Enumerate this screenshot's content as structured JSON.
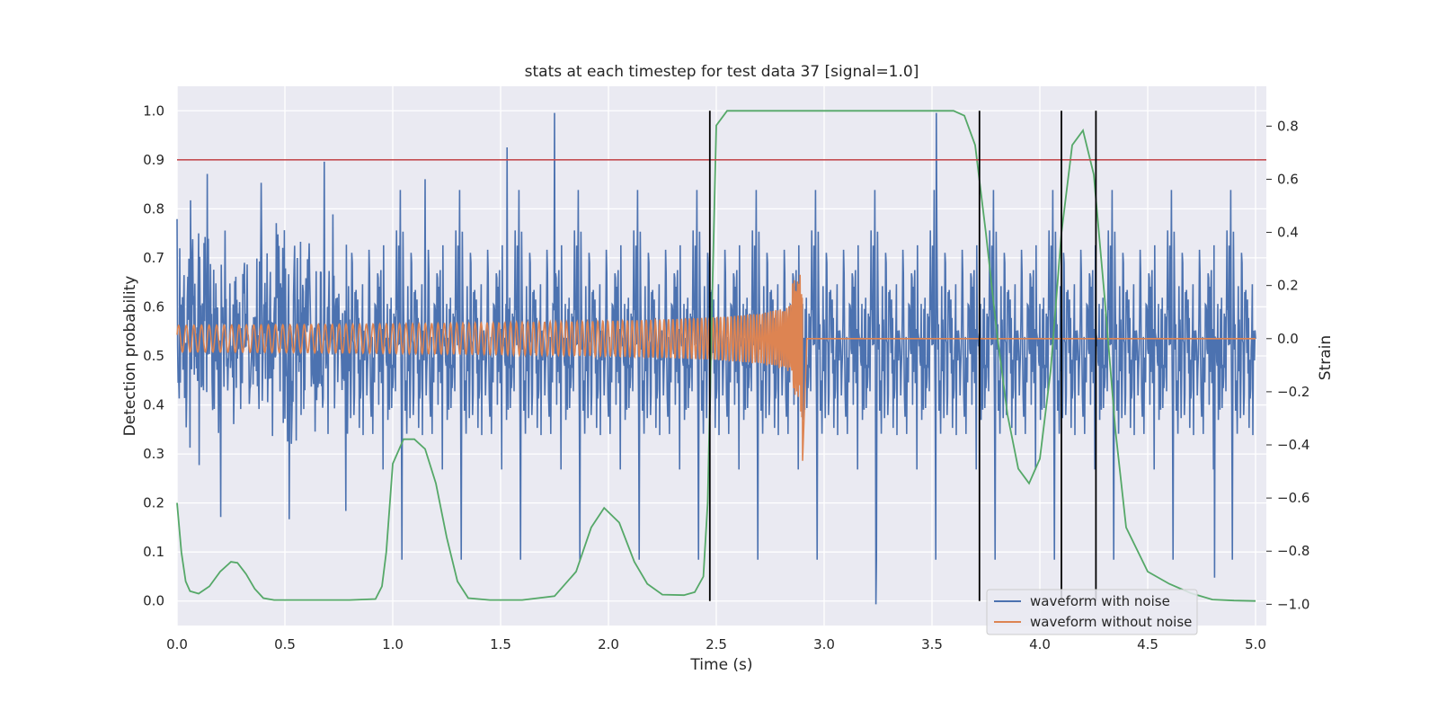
{
  "chart_data": {
    "type": "line",
    "title": "stats at each timestep for test data 37 [signal=1.0]",
    "xlabel": "Time (s)",
    "ylabel": "Detection probability",
    "y2label": "Strain",
    "xlim": [
      0.0,
      5.05
    ],
    "ylim": [
      -0.05,
      1.05
    ],
    "y2lim": [
      -1.08,
      0.95
    ],
    "x_ticks": [
      "0.0",
      "0.5",
      "1.0",
      "1.5",
      "2.0",
      "2.5",
      "3.0",
      "3.5",
      "4.0",
      "4.5",
      "5.0"
    ],
    "y_ticks": [
      "0.0",
      "0.1",
      "0.2",
      "0.3",
      "0.4",
      "0.5",
      "0.6",
      "0.7",
      "0.8",
      "0.9",
      "1.0"
    ],
    "y2_ticks": [
      "−1.0",
      "−0.8",
      "−0.6",
      "−0.4",
      "−0.2",
      "0.0",
      "0.2",
      "0.4",
      "0.6",
      "0.8"
    ],
    "grid": true,
    "legend_position": "lower-right",
    "legend": [
      "waveform with noise",
      "waveform without noise"
    ],
    "threshold": {
      "y": 0.9,
      "color": "#c44e52"
    },
    "vlines": [
      {
        "x": 2.47,
        "ymin": 0.0,
        "ymax": 1.0
      },
      {
        "x": 3.72,
        "ymin": 0.0,
        "ymax": 1.0
      },
      {
        "x": 4.1,
        "ymin": 0.0,
        "ymax": 1.0
      },
      {
        "x": 4.26,
        "ymin": 0.0,
        "ymax": 1.0
      }
    ],
    "series": [
      {
        "name": "waveform with noise",
        "color": "#4c72b0",
        "axis": "right",
        "note_noise_std": 0.21,
        "points_x": [
          0.0,
          0.14,
          0.52,
          1.15,
          1.53,
          1.75,
          3.24,
          3.52,
          4.81
        ],
        "points_y": [
          0.45,
          0.62,
          -0.68,
          0.6,
          0.72,
          0.85,
          -1.0,
          0.85,
          -0.9
        ]
      },
      {
        "name": "waveform without noise",
        "color": "#dd8452",
        "axis": "right",
        "chirp": {
          "start": 0.0,
          "merger": 2.9,
          "end": 5.0,
          "amp_start": 0.05,
          "amp_peak": 0.33,
          "amp_min": -0.46
        }
      },
      {
        "name": "",
        "color": "#55a868",
        "axis": "left",
        "x": [
          0.0,
          0.02,
          0.04,
          0.06,
          0.1,
          0.15,
          0.2,
          0.25,
          0.28,
          0.32,
          0.36,
          0.4,
          0.45,
          0.6,
          0.8,
          0.92,
          0.95,
          0.97,
          1.0,
          1.05,
          1.1,
          1.15,
          1.2,
          1.25,
          1.3,
          1.35,
          1.45,
          1.6,
          1.75,
          1.85,
          1.92,
          1.98,
          2.05,
          2.12,
          2.18,
          2.25,
          2.35,
          2.4,
          2.44,
          2.46,
          2.48,
          2.5,
          2.55,
          2.6,
          3.0,
          3.5,
          3.6,
          3.65,
          3.7,
          3.75,
          3.8,
          3.85,
          3.9,
          3.95,
          4.0,
          4.05,
          4.1,
          4.15,
          4.2,
          4.25,
          4.3,
          4.35,
          4.4,
          4.5,
          4.6,
          4.7,
          4.8,
          4.9,
          5.0
        ],
        "y": [
          0.2,
          0.1,
          0.04,
          0.02,
          0.015,
          0.03,
          0.06,
          0.08,
          0.078,
          0.055,
          0.025,
          0.006,
          0.002,
          0.002,
          0.002,
          0.004,
          0.03,
          0.1,
          0.28,
          0.33,
          0.33,
          0.31,
          0.24,
          0.13,
          0.04,
          0.006,
          0.002,
          0.002,
          0.01,
          0.06,
          0.15,
          0.19,
          0.16,
          0.08,
          0.035,
          0.013,
          0.012,
          0.018,
          0.05,
          0.2,
          0.6,
          0.97,
          1.0,
          1.0,
          1.0,
          1.0,
          1.0,
          0.99,
          0.93,
          0.75,
          0.55,
          0.38,
          0.27,
          0.24,
          0.29,
          0.47,
          0.75,
          0.93,
          0.96,
          0.87,
          0.62,
          0.35,
          0.15,
          0.06,
          0.035,
          0.016,
          0.003,
          0.001,
          0.0
        ]
      }
    ]
  }
}
